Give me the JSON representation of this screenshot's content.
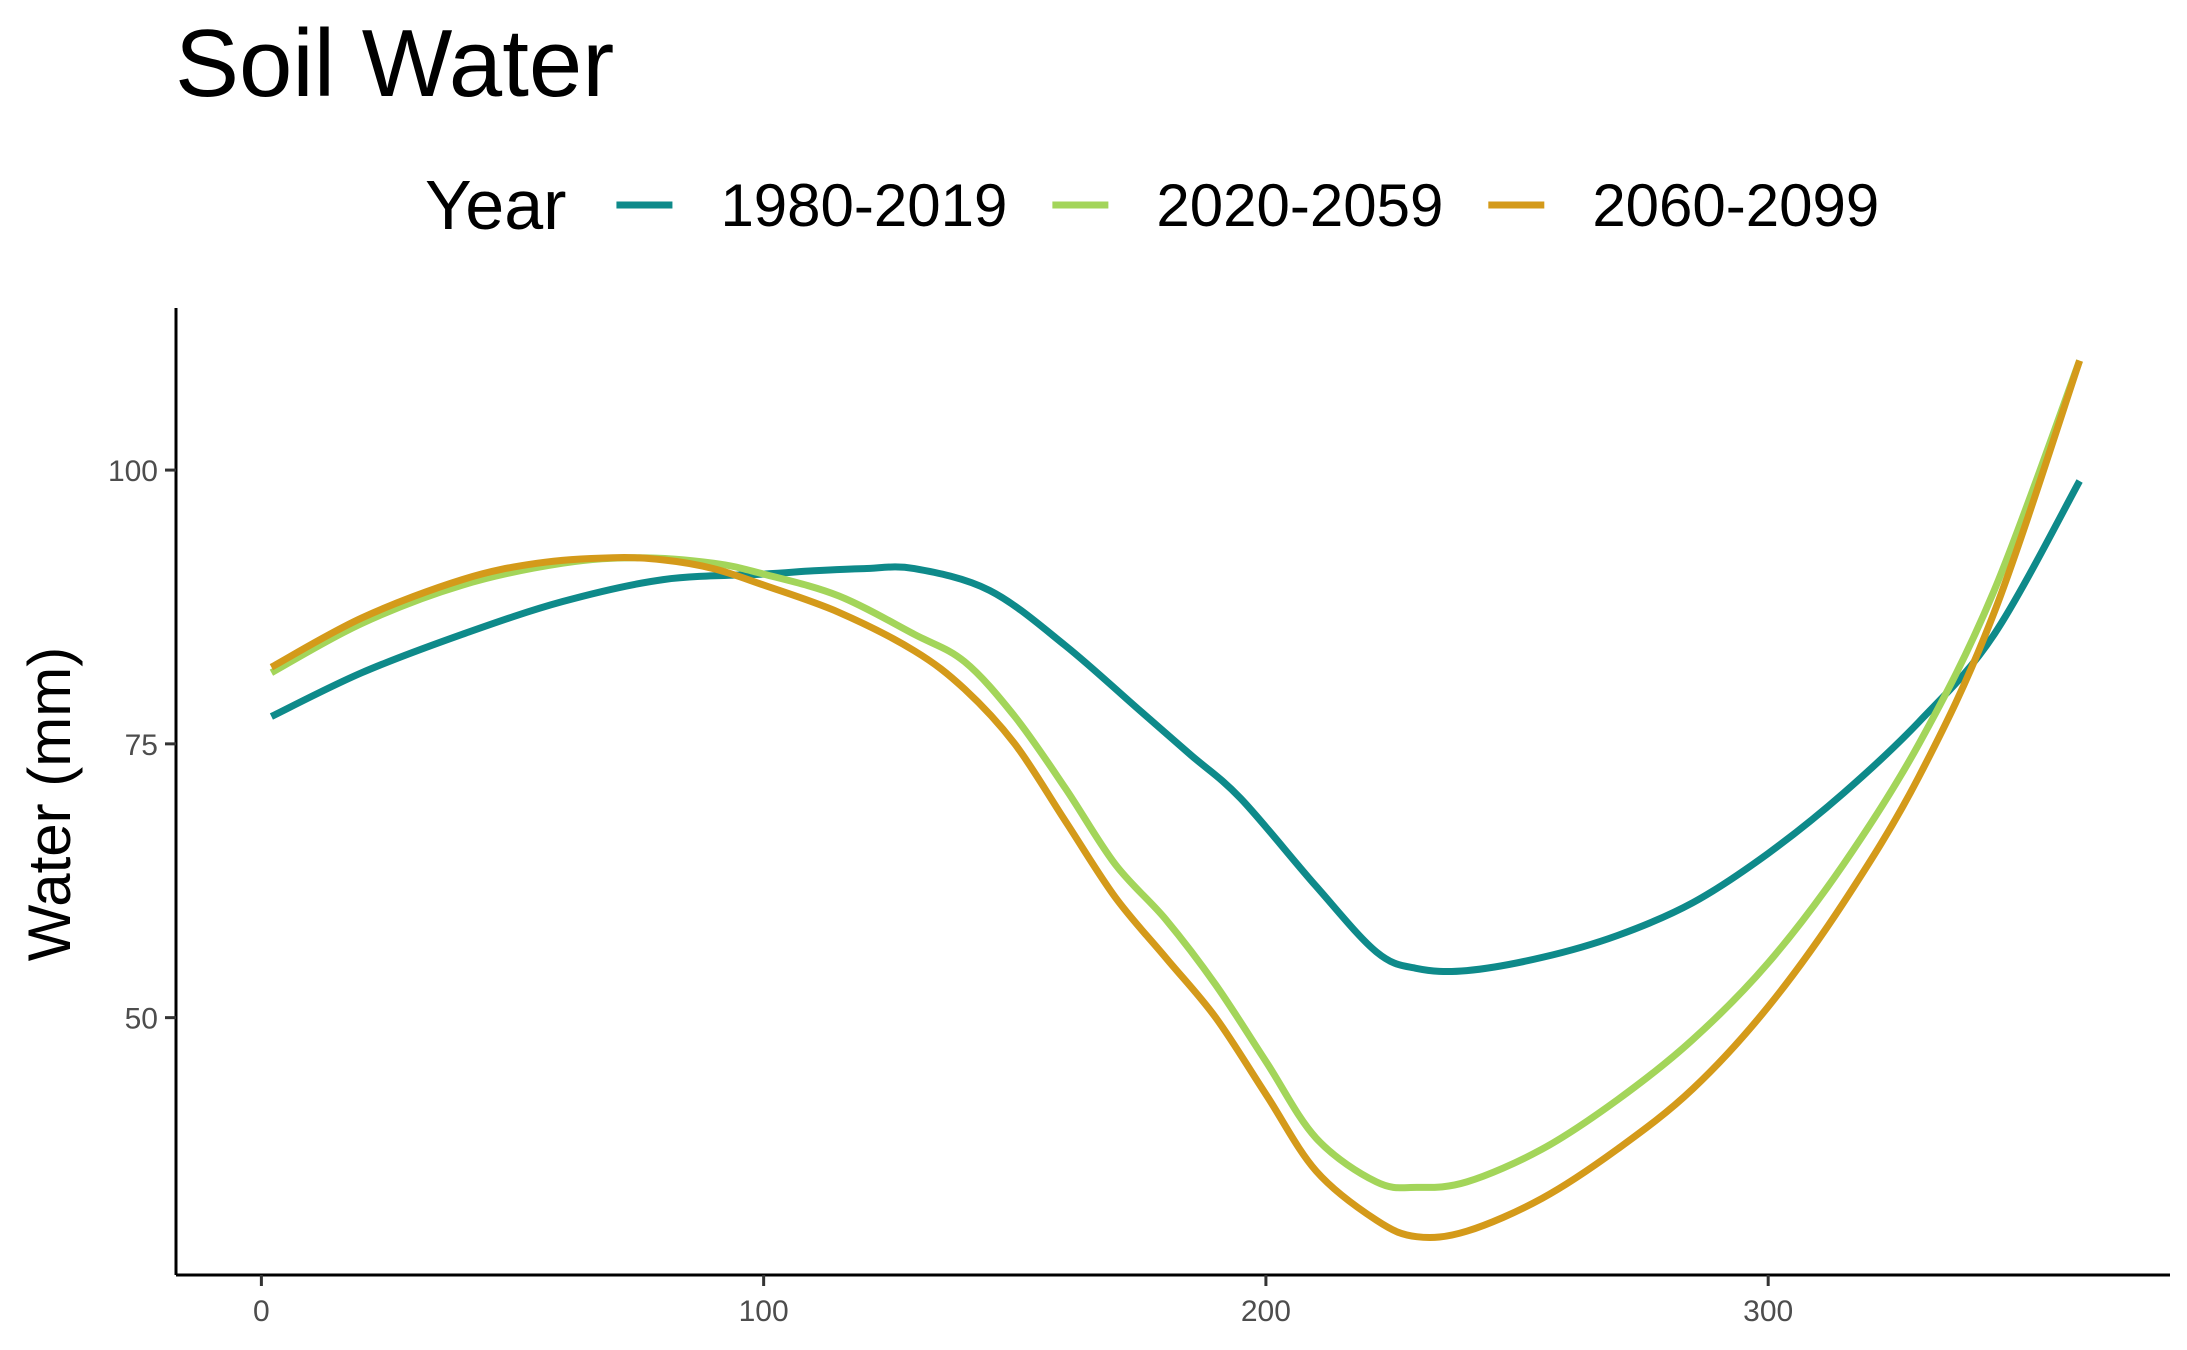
{
  "chart_data": {
    "type": "line",
    "title": "Soil Water",
    "xlabel": "",
    "ylabel": "Water (mm)",
    "xlim": [
      -17,
      380
    ],
    "ylim": [
      26.5,
      114.8
    ],
    "x_ticks": [
      0,
      100,
      200,
      300
    ],
    "y_ticks": [
      50,
      75,
      100
    ],
    "legend": {
      "title": "Year",
      "position": "top"
    },
    "grid": false,
    "series": [
      {
        "name": "1980-2019",
        "color": "#0e8a8a",
        "x": [
          2,
          20,
          40,
          60,
          80,
          100,
          110,
          120,
          130,
          145,
          160,
          175,
          185,
          195,
          210,
          222,
          230,
          240,
          255,
          270,
          285,
          300,
          315,
          330,
          345,
          362
        ],
        "y": [
          77.5,
          81.5,
          85,
          88,
          90,
          90.5,
          90.8,
          91,
          91,
          89,
          84,
          78,
          74,
          70,
          62,
          56,
          54.5,
          54.3,
          55.5,
          57.5,
          60.5,
          65,
          70.5,
          77,
          85,
          99
        ]
      },
      {
        "name": "2020-2059",
        "color": "#a3d55a",
        "x": [
          2,
          20,
          40,
          60,
          75,
          90,
          100,
          115,
          130,
          140,
          150,
          160,
          170,
          180,
          190,
          200,
          210,
          222,
          230,
          240,
          255,
          270,
          285,
          300,
          315,
          330,
          345,
          362
        ],
        "y": [
          81.5,
          86,
          89.5,
          91.5,
          92,
          91.5,
          90.5,
          88.5,
          85,
          82.5,
          77.5,
          71,
          64,
          59,
          53,
          46,
          39,
          35,
          34.5,
          35,
          38,
          42.5,
          48,
          55,
          64,
          75,
          89,
          110
        ]
      },
      {
        "name": "2060-2099",
        "color": "#d49a1a",
        "x": [
          2,
          20,
          40,
          55,
          70,
          80,
          90,
          100,
          115,
          130,
          140,
          150,
          160,
          170,
          180,
          190,
          200,
          210,
          222,
          230,
          240,
          255,
          270,
          285,
          300,
          315,
          330,
          345,
          362
        ],
        "y": [
          82,
          86.5,
          90,
          91.5,
          92,
          91.8,
          91,
          89.5,
          87,
          83.5,
          80,
          75,
          68,
          61,
          55.5,
          50,
          43,
          36,
          31.5,
          30,
          30.5,
          33.5,
          38,
          43.5,
          51,
          60.5,
          72,
          87,
          110
        ]
      }
    ]
  }
}
